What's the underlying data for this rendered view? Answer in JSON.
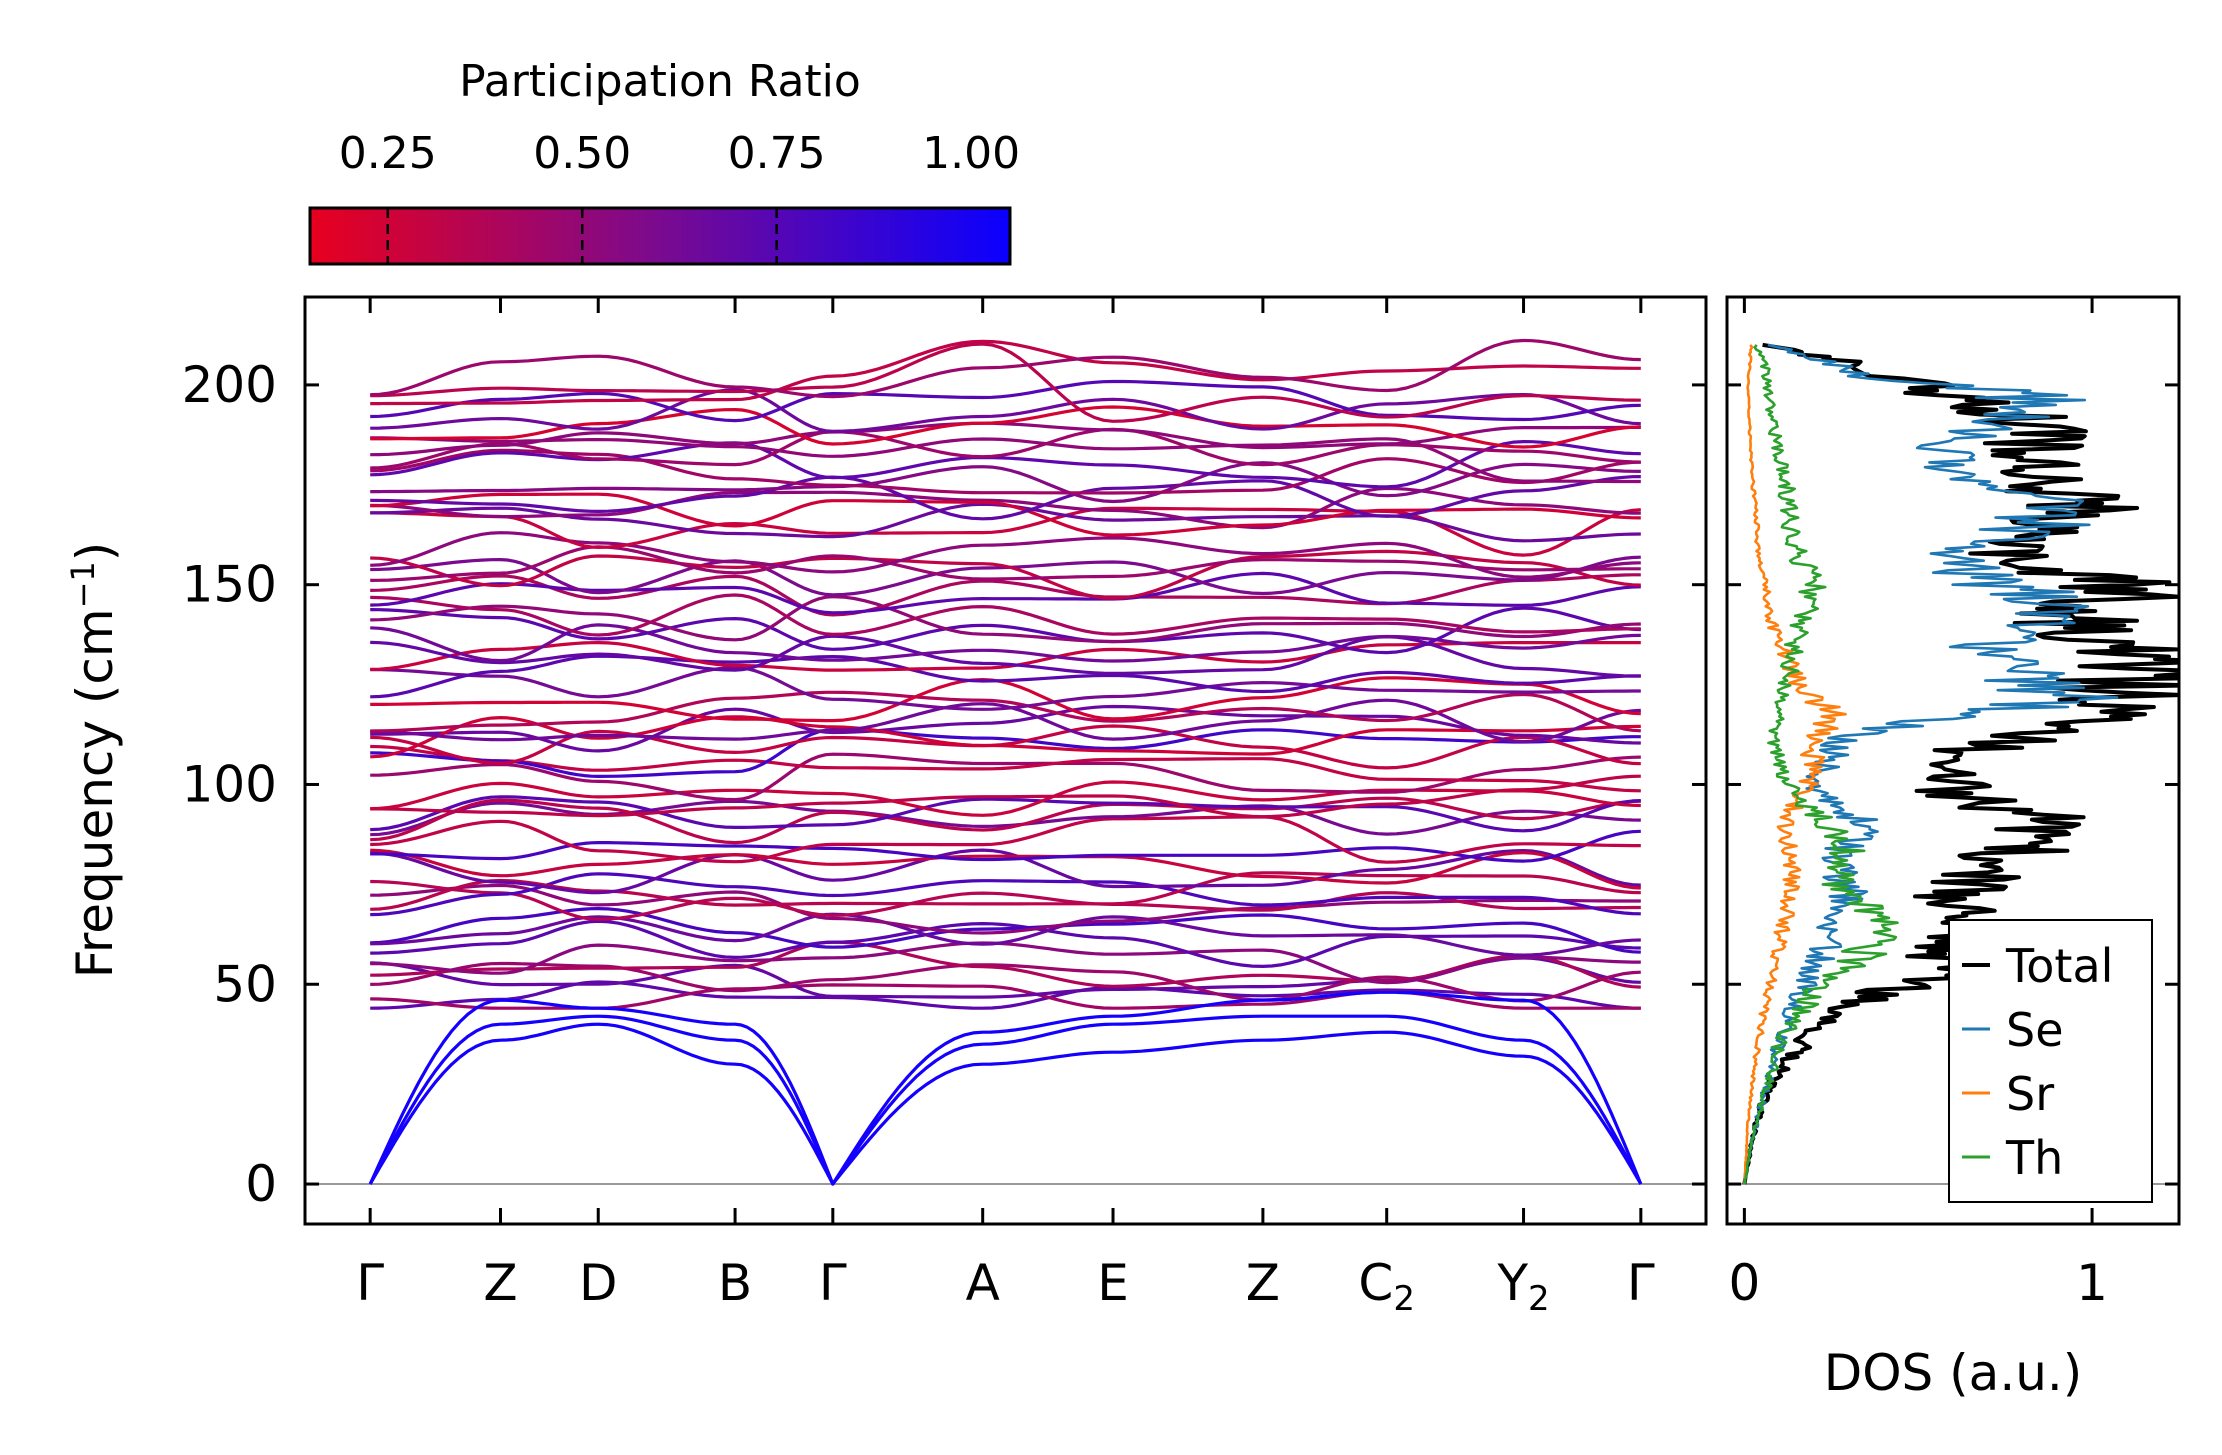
{
  "chart_data": [
    {
      "type": "line",
      "panel": "phonon-dispersion",
      "ylabel": "Frequency (cm⁻¹)",
      "ylim": [
        -10,
        222
      ],
      "yticks": [
        0,
        50,
        100,
        150,
        200
      ],
      "kpoints": [
        {
          "label": "Γ",
          "x": 0.0
        },
        {
          "label": "Z",
          "x": 1.0
        },
        {
          "label": "D",
          "x": 1.75
        },
        {
          "label": "B",
          "x": 2.8
        },
        {
          "label": "Γ",
          "x": 3.55
        },
        {
          "label": "A",
          "x": 4.7
        },
        {
          "label": "E",
          "x": 5.7
        },
        {
          "label": "Z",
          "x": 6.85
        },
        {
          "label": "C",
          "sub": "2",
          "x": 7.8
        },
        {
          "label": "Y",
          "sub": "2",
          "x": 8.85
        },
        {
          "label": "Γ",
          "x": 9.75
        }
      ],
      "xlim": [
        -0.5,
        10.25
      ],
      "acoustic_at_nodes": [
        [
          0,
          0,
          0
        ],
        [
          36,
          40,
          46
        ],
        [
          40,
          42,
          44
        ],
        [
          30,
          36,
          40
        ],
        [
          0,
          0,
          0
        ],
        [
          30,
          35,
          38
        ],
        [
          33,
          40,
          42
        ],
        [
          36,
          42,
          46
        ],
        [
          38,
          42,
          48
        ],
        [
          32,
          36,
          46
        ],
        [
          0,
          0,
          0
        ]
      ],
      "optical_band_count": 62,
      "optical_range": [
        44,
        213
      ],
      "colorbar": {
        "title": "Participation Ratio",
        "range": [
          0.15,
          1.05
        ],
        "ticks": [
          "0.25",
          "0.50",
          "0.75",
          "1.00"
        ],
        "tick_values": [
          0.25,
          0.5,
          0.75,
          1.0
        ],
        "color_low": "#e8001e",
        "color_high": "#0a00ff"
      }
    },
    {
      "type": "line",
      "panel": "density-of-states",
      "xlabel": "DOS (a.u.)",
      "xlim": [
        -0.05,
        1.25
      ],
      "xticks": [
        0,
        1
      ],
      "ylim": [
        -10,
        222
      ],
      "series": [
        {
          "name": "Total",
          "color": "#000000",
          "points": [
            [
              0,
              0
            ],
            [
              0.02,
              10
            ],
            [
              0.05,
              20
            ],
            [
              0.1,
              28
            ],
            [
              0.18,
              36
            ],
            [
              0.25,
              42
            ],
            [
              0.4,
              48
            ],
            [
              0.5,
              50
            ],
            [
              0.62,
              62
            ],
            [
              0.6,
              72
            ],
            [
              0.72,
              80
            ],
            [
              0.9,
              90
            ],
            [
              0.62,
              98
            ],
            [
              0.55,
              106
            ],
            [
              1.05,
              118
            ],
            [
              1.15,
              131
            ],
            [
              0.95,
              140
            ],
            [
              1.1,
              150
            ],
            [
              0.7,
              158
            ],
            [
              1.0,
              170
            ],
            [
              0.8,
              177
            ],
            [
              0.85,
              190
            ],
            [
              0.5,
              200
            ],
            [
              0.35,
              205
            ],
            [
              0.05,
              210
            ]
          ]
        },
        {
          "name": "Se",
          "color": "#1f77b4",
          "points": [
            [
              0,
              0
            ],
            [
              0.02,
              10
            ],
            [
              0.05,
              20
            ],
            [
              0.08,
              30
            ],
            [
              0.12,
              40
            ],
            [
              0.18,
              50
            ],
            [
              0.24,
              60
            ],
            [
              0.3,
              72
            ],
            [
              0.26,
              82
            ],
            [
              0.34,
              90
            ],
            [
              0.2,
              100
            ],
            [
              0.28,
              112
            ],
            [
              0.95,
              122
            ],
            [
              0.7,
              132
            ],
            [
              0.88,
              145
            ],
            [
              0.6,
              155
            ],
            [
              0.9,
              168
            ],
            [
              0.55,
              180
            ],
            [
              0.85,
              198
            ],
            [
              0.35,
              202
            ],
            [
              0.08,
              210
            ]
          ]
        },
        {
          "name": "Sr",
          "color": "#ff7f0e",
          "points": [
            [
              0,
              0
            ],
            [
              0.01,
              15
            ],
            [
              0.03,
              30
            ],
            [
              0.06,
              45
            ],
            [
              0.1,
              60
            ],
            [
              0.14,
              75
            ],
            [
              0.12,
              90
            ],
            [
              0.18,
              100
            ],
            [
              0.2,
              110
            ],
            [
              0.25,
              118
            ],
            [
              0.16,
              125
            ],
            [
              0.08,
              140
            ],
            [
              0.04,
              160
            ],
            [
              0.02,
              180
            ],
            [
              0.01,
              200
            ],
            [
              0.02,
              210
            ]
          ]
        },
        {
          "name": "Th",
          "color": "#2ca02c",
          "points": [
            [
              0,
              0
            ],
            [
              0.02,
              10
            ],
            [
              0.05,
              20
            ],
            [
              0.1,
              35
            ],
            [
              0.2,
              48
            ],
            [
              0.35,
              58
            ],
            [
              0.4,
              65
            ],
            [
              0.28,
              75
            ],
            [
              0.3,
              85
            ],
            [
              0.12,
              100
            ],
            [
              0.08,
              112
            ],
            [
              0.12,
              125
            ],
            [
              0.16,
              140
            ],
            [
              0.2,
              150
            ],
            [
              0.14,
              160
            ],
            [
              0.12,
              175
            ],
            [
              0.08,
              190
            ],
            [
              0.06,
              205
            ],
            [
              0.03,
              210
            ]
          ]
        }
      ],
      "legend_position": "lower-right"
    }
  ]
}
